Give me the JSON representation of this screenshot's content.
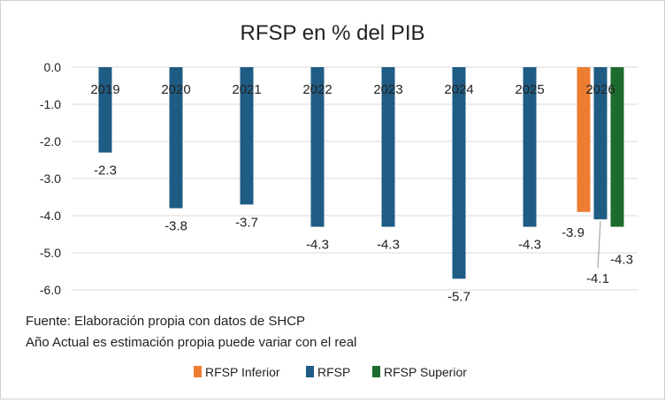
{
  "chart_data": {
    "type": "bar",
    "title": "RFSP en % del PIB",
    "xlabel": "",
    "ylabel": "",
    "ylim": [
      -6.0,
      0.0
    ],
    "yticks": [
      "0.0",
      "-1.0",
      "-2.0",
      "-3.0",
      "-4.0",
      "-5.0",
      "-6.0"
    ],
    "grid": true,
    "legend_position": "bottom-right",
    "categories": [
      "2019",
      "2020",
      "2021",
      "2022",
      "2023",
      "2024",
      "2025",
      "2026"
    ],
    "series": [
      {
        "name": "RFSP Inferior",
        "color": "#ED7D31",
        "values": [
          null,
          null,
          null,
          null,
          null,
          null,
          null,
          -3.9
        ],
        "labels": [
          null,
          null,
          null,
          null,
          null,
          null,
          null,
          "-3.9"
        ]
      },
      {
        "name": "RFSP",
        "color": "#1F5C84",
        "values": [
          -2.3,
          -3.8,
          -3.7,
          -4.3,
          -4.3,
          -5.7,
          -4.3,
          -4.1
        ],
        "labels": [
          "-2.3",
          "-3.8",
          "-3.7",
          "-4.3",
          "-4.3",
          "-5.7",
          "-4.3",
          "-4.1"
        ]
      },
      {
        "name": "RFSP Superior",
        "color": "#1E6B2E",
        "values": [
          null,
          null,
          null,
          null,
          null,
          null,
          null,
          -4.3
        ],
        "labels": [
          null,
          null,
          null,
          null,
          null,
          null,
          null,
          "-4.3"
        ]
      }
    ],
    "notes": [
      "Fuente: Elaboración propia con datos de SHCP",
      "Año Actual es estimación propia puede variar con el real"
    ]
  }
}
